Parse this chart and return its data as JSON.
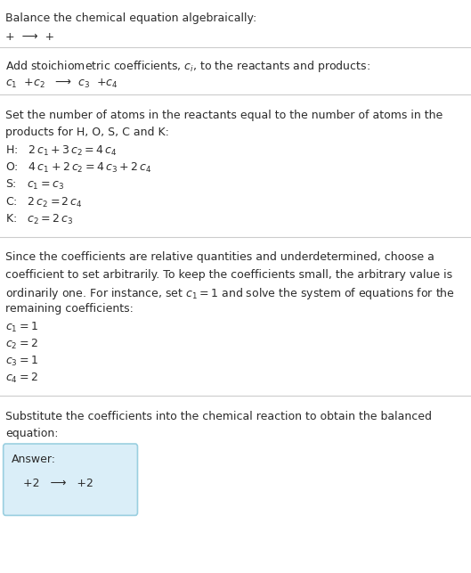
{
  "title": "Balance the chemical equation algebraically:",
  "section1_line1": "+  ⟶  +",
  "section2_header": "Add stoichiometric coefficients, $c_i$, to the reactants and products:",
  "section2_line1": "$c_1$  +$c_2$   ⟶  $c_3$  +$c_4$",
  "section3_header_l1": "Set the number of atoms in the reactants equal to the number of atoms in the",
  "section3_header_l2": "products for H, O, S, C and K:",
  "section3_equations": [
    "H:   $2\\,c_1 + 3\\,c_2 = 4\\,c_4$",
    "O:   $4\\,c_1 + 2\\,c_2 = 4\\,c_3 + 2\\,c_4$",
    "S:   $c_1 = c_3$",
    "C:   $2\\,c_2 = 2\\,c_4$",
    "K:   $c_2 = 2\\,c_3$"
  ],
  "section4_header_l1": "Since the coefficients are relative quantities and underdetermined, choose a",
  "section4_header_l2": "coefficient to set arbitrarily. To keep the coefficients small, the arbitrary value is",
  "section4_header_l3": "ordinarily one. For instance, set $c_1 = 1$ and solve the system of equations for the",
  "section4_header_l4": "remaining coefficients:",
  "section4_solutions": [
    "$c_1 = 1$",
    "$c_2 = 2$",
    "$c_3 = 1$",
    "$c_4 = 2$"
  ],
  "section5_header_l1": "Substitute the coefficients into the chemical reaction to obtain the balanced",
  "section5_header_l2": "equation:",
  "answer_label": "Answer:",
  "answer_line": "  +2   ⟶   +2",
  "bg_color": "#ffffff",
  "text_color": "#2b2b2b",
  "line_color": "#cccccc",
  "answer_box_facecolor": "#daeef8",
  "answer_box_edgecolor": "#9acfe0"
}
